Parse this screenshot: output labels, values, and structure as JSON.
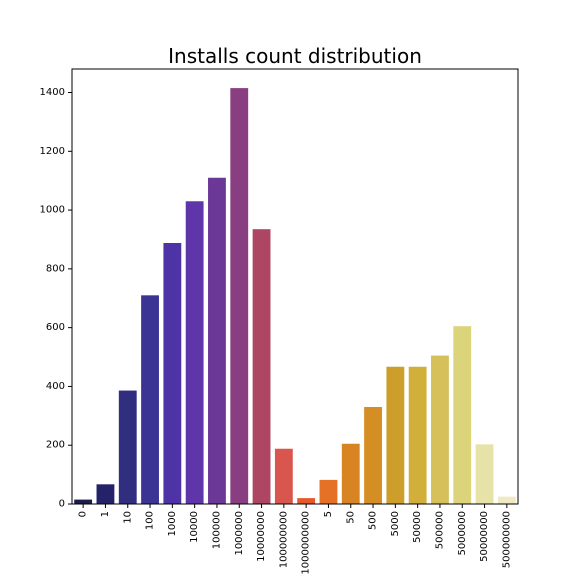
{
  "chart_data": {
    "type": "bar",
    "title": "Installs count distribution",
    "xlabel": "",
    "ylabel": "",
    "ylim": [
      0,
      1480
    ],
    "y_ticks": [
      0,
      200,
      400,
      600,
      800,
      1000,
      1200,
      1400
    ],
    "grid": false,
    "categories": [
      "0",
      "1",
      "10",
      "100",
      "1000",
      "10000",
      "100000",
      "1000000",
      "10000000",
      "100000000",
      "1000000000",
      "5",
      "50",
      "500",
      "5000",
      "50000",
      "500000",
      "5000000",
      "50000000",
      "500000000"
    ],
    "values": [
      15,
      67,
      386,
      710,
      888,
      1030,
      1110,
      1415,
      935,
      188,
      20,
      82,
      205,
      330,
      467,
      467,
      505,
      605,
      203,
      25
    ],
    "colors": [
      "#1c1e4a",
      "#24236a",
      "#312e80",
      "#3c3494",
      "#4d33a6",
      "#5f36aa",
      "#6c3898",
      "#8a3e82",
      "#ad4563",
      "#d9564e",
      "#e6582a",
      "#e57126",
      "#d98423",
      "#d58e23",
      "#cd9f2a",
      "#d2ae3a",
      "#d5c05a",
      "#dcd47a",
      "#e6e2a8",
      "#efe9c4"
    ]
  }
}
